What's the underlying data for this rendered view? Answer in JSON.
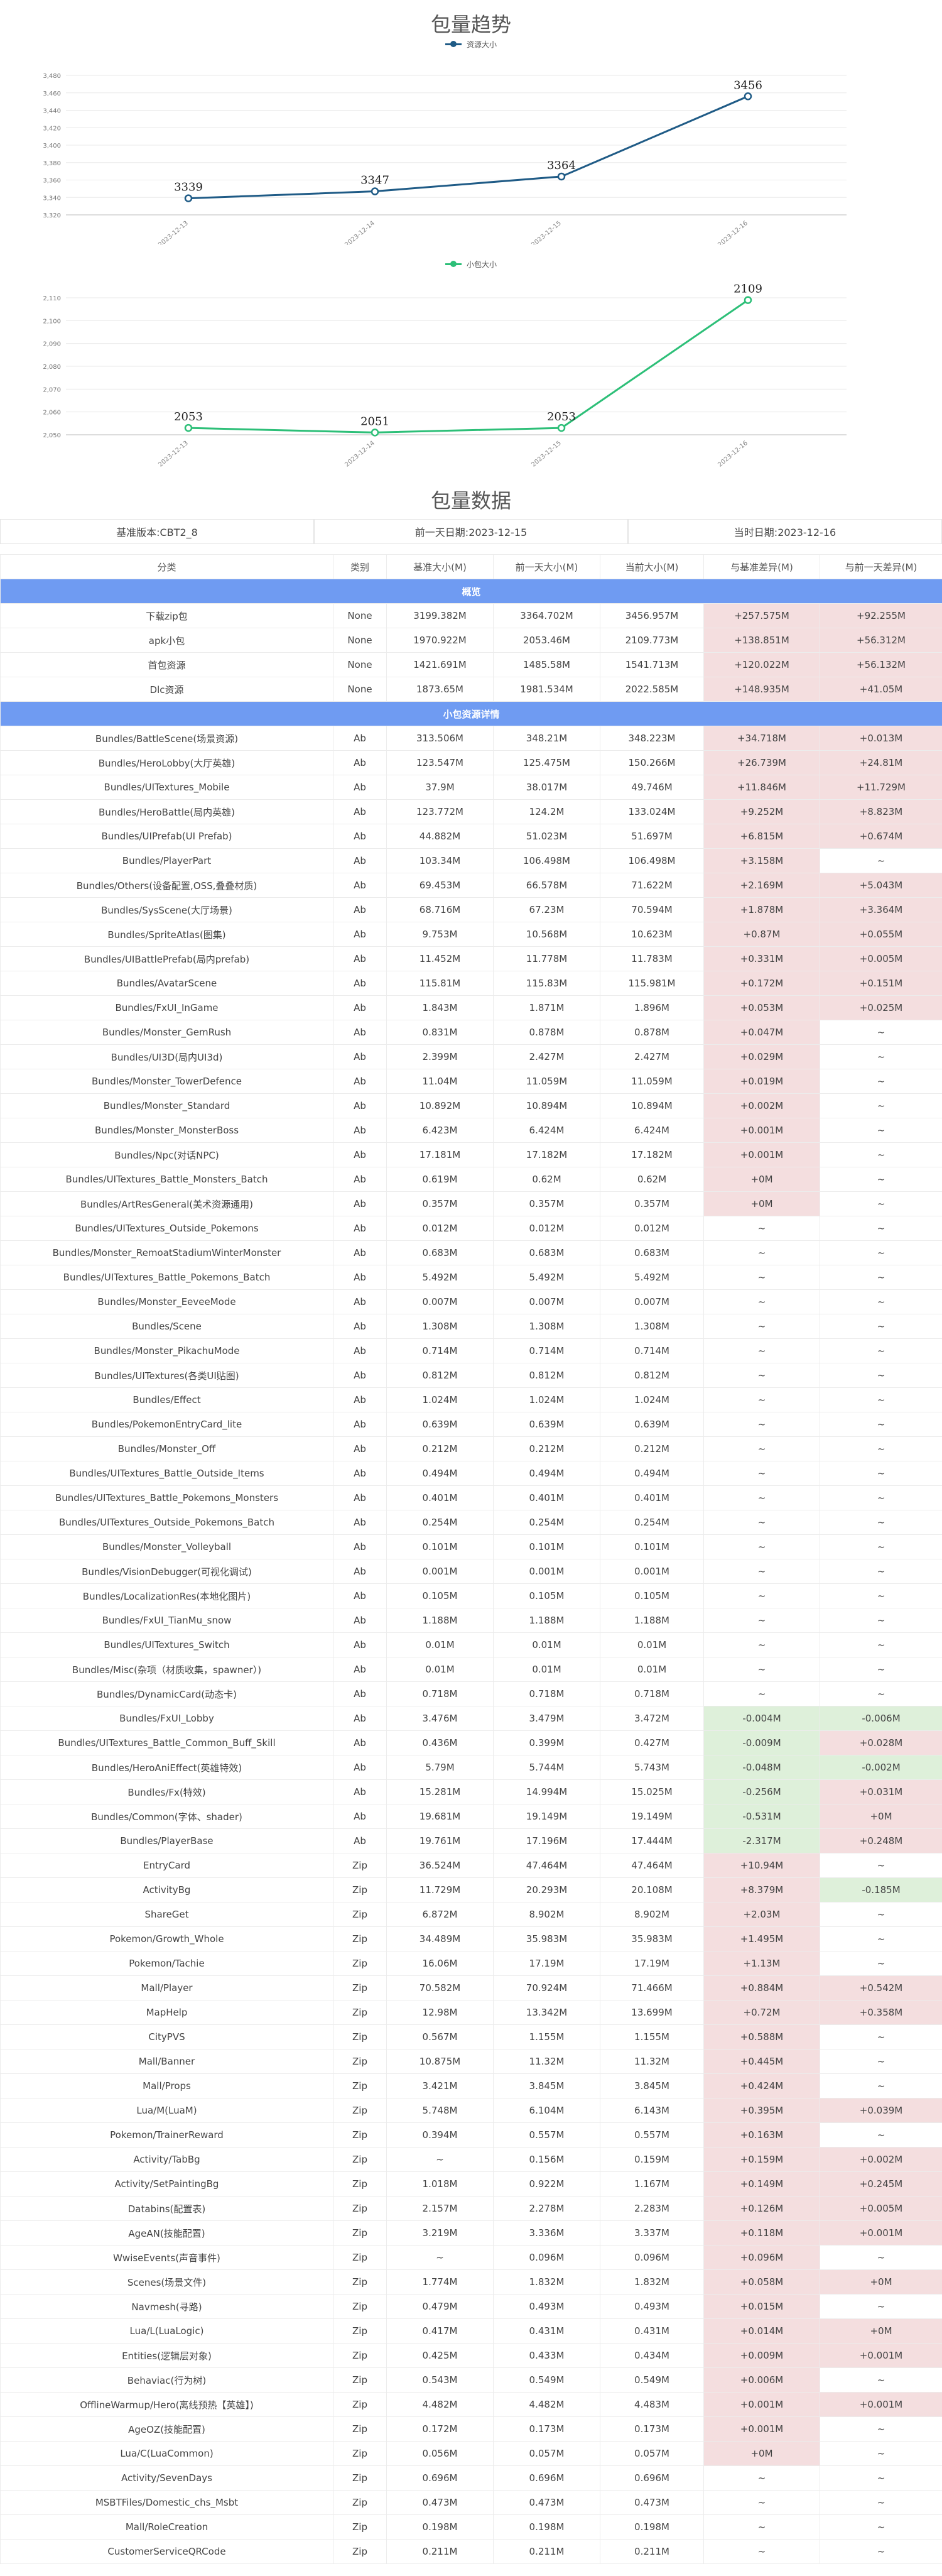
{
  "chart_data": [
    {
      "type": "line",
      "title": "包量趋势",
      "x": [
        "2023-12-13",
        "2023-12-14",
        "2023-12-15",
        "2023-12-16"
      ],
      "series": [
        {
          "name": "资源大小",
          "values": [
            3339,
            3347,
            3364,
            3456
          ],
          "color": "#1f5b86"
        }
      ],
      "y_ticks": [
        3320,
        3340,
        3360,
        3380,
        3400,
        3420,
        3440,
        3460,
        3480
      ],
      "ylim": [
        3320,
        3480
      ],
      "grid": true,
      "legend": "top-center"
    },
    {
      "type": "line",
      "title": "",
      "x": [
        "2023-12-13",
        "2023-12-14",
        "2023-12-15",
        "2023-12-16"
      ],
      "series": [
        {
          "name": "小包大小",
          "values": [
            2053,
            2051,
            2053,
            2109
          ],
          "color": "#2dbf78"
        }
      ],
      "y_ticks": [
        2050,
        2060,
        2070,
        2080,
        2090,
        2100,
        2110
      ],
      "ylim": [
        2050,
        2110
      ],
      "grid": true,
      "legend": "top-center"
    }
  ],
  "table": {
    "title": "包量数据",
    "info": [
      "基准版本:CBT2_8",
      "前一天日期:2023-12-15",
      "当时日期:2023-12-16"
    ],
    "headers": [
      "分类",
      "类别",
      "基准大小(M)",
      "前一天大小(M)",
      "当前大小(M)",
      "与基准差异(M)",
      "与前一天差异(M)"
    ],
    "sections": [
      {
        "title": "概览",
        "rows": [
          [
            "下载zip包",
            "None",
            "3199.382M",
            "3364.702M",
            "3456.957M",
            "+257.575M",
            "+92.255M"
          ],
          [
            "apk小包",
            "None",
            "1970.922M",
            "2053.46M",
            "2109.773M",
            "+138.851M",
            "+56.312M"
          ],
          [
            "首包资源",
            "None",
            "1421.691M",
            "1485.58M",
            "1541.713M",
            "+120.022M",
            "+56.132M"
          ],
          [
            "Dlc资源",
            "None",
            "1873.65M",
            "1981.534M",
            "2022.585M",
            "+148.935M",
            "+41.05M"
          ]
        ]
      },
      {
        "title": "小包资源详情",
        "rows": [
          [
            "Bundles/BattleScene(场景资源)",
            "Ab",
            "313.506M",
            "348.21M",
            "348.223M",
            "+34.718M",
            "+0.013M"
          ],
          [
            "Bundles/HeroLobby(大厅英雄)",
            "Ab",
            "123.547M",
            "125.475M",
            "150.266M",
            "+26.739M",
            "+24.81M"
          ],
          [
            "Bundles/UITextures_Mobile",
            "Ab",
            "37.9M",
            "38.017M",
            "49.746M",
            "+11.846M",
            "+11.729M"
          ],
          [
            "Bundles/HeroBattle(局内英雄)",
            "Ab",
            "123.772M",
            "124.2M",
            "133.024M",
            "+9.252M",
            "+8.823M"
          ],
          [
            "Bundles/UIPrefab(UI Prefab)",
            "Ab",
            "44.882M",
            "51.023M",
            "51.697M",
            "+6.815M",
            "+0.674M"
          ],
          [
            "Bundles/PlayerPart",
            "Ab",
            "103.34M",
            "106.498M",
            "106.498M",
            "+3.158M",
            "~"
          ],
          [
            "Bundles/Others(设备配置,OSS,叠叠材质)",
            "Ab",
            "69.453M",
            "66.578M",
            "71.622M",
            "+2.169M",
            "+5.043M"
          ],
          [
            "Bundles/SysScene(大厅场景)",
            "Ab",
            "68.716M",
            "67.23M",
            "70.594M",
            "+1.878M",
            "+3.364M"
          ],
          [
            "Bundles/SpriteAtlas(图集)",
            "Ab",
            "9.753M",
            "10.568M",
            "10.623M",
            "+0.87M",
            "+0.055M"
          ],
          [
            "Bundles/UIBattlePrefab(局内prefab)",
            "Ab",
            "11.452M",
            "11.778M",
            "11.783M",
            "+0.331M",
            "+0.005M"
          ],
          [
            "Bundles/AvatarScene",
            "Ab",
            "115.81M",
            "115.83M",
            "115.981M",
            "+0.172M",
            "+0.151M"
          ],
          [
            "Bundles/FxUI_InGame",
            "Ab",
            "1.843M",
            "1.871M",
            "1.896M",
            "+0.053M",
            "+0.025M"
          ],
          [
            "Bundles/Monster_GemRush",
            "Ab",
            "0.831M",
            "0.878M",
            "0.878M",
            "+0.047M",
            "~"
          ],
          [
            "Bundles/UI3D(局内UI3d)",
            "Ab",
            "2.399M",
            "2.427M",
            "2.427M",
            "+0.029M",
            "~"
          ],
          [
            "Bundles/Monster_TowerDefence",
            "Ab",
            "11.04M",
            "11.059M",
            "11.059M",
            "+0.019M",
            "~"
          ],
          [
            "Bundles/Monster_Standard",
            "Ab",
            "10.892M",
            "10.894M",
            "10.894M",
            "+0.002M",
            "~"
          ],
          [
            "Bundles/Monster_MonsterBoss",
            "Ab",
            "6.423M",
            "6.424M",
            "6.424M",
            "+0.001M",
            "~"
          ],
          [
            "Bundles/Npc(对话NPC)",
            "Ab",
            "17.181M",
            "17.182M",
            "17.182M",
            "+0.001M",
            "~"
          ],
          [
            "Bundles/UITextures_Battle_Monsters_Batch",
            "Ab",
            "0.619M",
            "0.62M",
            "0.62M",
            "+0M",
            "~"
          ],
          [
            "Bundles/ArtResGeneral(美术资源通用)",
            "Ab",
            "0.357M",
            "0.357M",
            "0.357M",
            "+0M",
            "~"
          ],
          [
            "Bundles/UITextures_Outside_Pokemons",
            "Ab",
            "0.012M",
            "0.012M",
            "0.012M",
            "~",
            "~"
          ],
          [
            "Bundles/Monster_RemoatStadiumWinterMonster",
            "Ab",
            "0.683M",
            "0.683M",
            "0.683M",
            "~",
            "~"
          ],
          [
            "Bundles/UITextures_Battle_Pokemons_Batch",
            "Ab",
            "5.492M",
            "5.492M",
            "5.492M",
            "~",
            "~"
          ],
          [
            "Bundles/Monster_EeveeMode",
            "Ab",
            "0.007M",
            "0.007M",
            "0.007M",
            "~",
            "~"
          ],
          [
            "Bundles/Scene",
            "Ab",
            "1.308M",
            "1.308M",
            "1.308M",
            "~",
            "~"
          ],
          [
            "Bundles/Monster_PikachuMode",
            "Ab",
            "0.714M",
            "0.714M",
            "0.714M",
            "~",
            "~"
          ],
          [
            "Bundles/UITextures(各类UI贴图)",
            "Ab",
            "0.812M",
            "0.812M",
            "0.812M",
            "~",
            "~"
          ],
          [
            "Bundles/Effect",
            "Ab",
            "1.024M",
            "1.024M",
            "1.024M",
            "~",
            "~"
          ],
          [
            "Bundles/PokemonEntryCard_lite",
            "Ab",
            "0.639M",
            "0.639M",
            "0.639M",
            "~",
            "~"
          ],
          [
            "Bundles/Monster_Off",
            "Ab",
            "0.212M",
            "0.212M",
            "0.212M",
            "~",
            "~"
          ],
          [
            "Bundles/UITextures_Battle_Outside_Items",
            "Ab",
            "0.494M",
            "0.494M",
            "0.494M",
            "~",
            "~"
          ],
          [
            "Bundles/UITextures_Battle_Pokemons_Monsters",
            "Ab",
            "0.401M",
            "0.401M",
            "0.401M",
            "~",
            "~"
          ],
          [
            "Bundles/UITextures_Outside_Pokemons_Batch",
            "Ab",
            "0.254M",
            "0.254M",
            "0.254M",
            "~",
            "~"
          ],
          [
            "Bundles/Monster_Volleyball",
            "Ab",
            "0.101M",
            "0.101M",
            "0.101M",
            "~",
            "~"
          ],
          [
            "Bundles/VisionDebugger(可视化调试)",
            "Ab",
            "0.001M",
            "0.001M",
            "0.001M",
            "~",
            "~"
          ],
          [
            "Bundles/LocalizationRes(本地化图片)",
            "Ab",
            "0.105M",
            "0.105M",
            "0.105M",
            "~",
            "~"
          ],
          [
            "Bundles/FxUI_TianMu_snow",
            "Ab",
            "1.188M",
            "1.188M",
            "1.188M",
            "~",
            "~"
          ],
          [
            "Bundles/UITextures_Switch",
            "Ab",
            "0.01M",
            "0.01M",
            "0.01M",
            "~",
            "~"
          ],
          [
            "Bundles/Misc(杂项（材质收集，spawner）)",
            "Ab",
            "0.01M",
            "0.01M",
            "0.01M",
            "~",
            "~"
          ],
          [
            "Bundles/DynamicCard(动态卡)",
            "Ab",
            "0.718M",
            "0.718M",
            "0.718M",
            "~",
            "~"
          ],
          [
            "Bundles/FxUI_Lobby",
            "Ab",
            "3.476M",
            "3.479M",
            "3.472M",
            "-0.004M",
            "-0.006M"
          ],
          [
            "Bundles/UITextures_Battle_Common_Buff_Skill",
            "Ab",
            "0.436M",
            "0.399M",
            "0.427M",
            "-0.009M",
            "+0.028M"
          ],
          [
            "Bundles/HeroAniEffect(英雄特效)",
            "Ab",
            "5.79M",
            "5.744M",
            "5.743M",
            "-0.048M",
            "-0.002M"
          ],
          [
            "Bundles/Fx(特效)",
            "Ab",
            "15.281M",
            "14.994M",
            "15.025M",
            "-0.256M",
            "+0.031M"
          ],
          [
            "Bundles/Common(字体、shader)",
            "Ab",
            "19.681M",
            "19.149M",
            "19.149M",
            "-0.531M",
            "+0M"
          ],
          [
            "Bundles/PlayerBase",
            "Ab",
            "19.761M",
            "17.196M",
            "17.444M",
            "-2.317M",
            "+0.248M"
          ],
          [
            "EntryCard",
            "Zip",
            "36.524M",
            "47.464M",
            "47.464M",
            "+10.94M",
            "~"
          ],
          [
            "ActivityBg",
            "Zip",
            "11.729M",
            "20.293M",
            "20.108M",
            "+8.379M",
            "-0.185M"
          ],
          [
            "ShareGet",
            "Zip",
            "6.872M",
            "8.902M",
            "8.902M",
            "+2.03M",
            "~"
          ],
          [
            "Pokemon/Growth_Whole",
            "Zip",
            "34.489M",
            "35.983M",
            "35.983M",
            "+1.495M",
            "~"
          ],
          [
            "Pokemon/Tachie",
            "Zip",
            "16.06M",
            "17.19M",
            "17.19M",
            "+1.13M",
            "~"
          ],
          [
            "Mall/Player",
            "Zip",
            "70.582M",
            "70.924M",
            "71.466M",
            "+0.884M",
            "+0.542M"
          ],
          [
            "MapHelp",
            "Zip",
            "12.98M",
            "13.342M",
            "13.699M",
            "+0.72M",
            "+0.358M"
          ],
          [
            "CityPVS",
            "Zip",
            "0.567M",
            "1.155M",
            "1.155M",
            "+0.588M",
            "~"
          ],
          [
            "Mall/Banner",
            "Zip",
            "10.875M",
            "11.32M",
            "11.32M",
            "+0.445M",
            "~"
          ],
          [
            "Mall/Props",
            "Zip",
            "3.421M",
            "3.845M",
            "3.845M",
            "+0.424M",
            "~"
          ],
          [
            "Lua/M(LuaM)",
            "Zip",
            "5.748M",
            "6.104M",
            "6.143M",
            "+0.395M",
            "+0.039M"
          ],
          [
            "Pokemon/TrainerReward",
            "Zip",
            "0.394M",
            "0.557M",
            "0.557M",
            "+0.163M",
            "~"
          ],
          [
            "Activity/TabBg",
            "Zip",
            "~",
            "0.156M",
            "0.159M",
            "+0.159M",
            "+0.002M"
          ],
          [
            "Activity/SetPaintingBg",
            "Zip",
            "1.018M",
            "0.922M",
            "1.167M",
            "+0.149M",
            "+0.245M"
          ],
          [
            "Databins(配置表)",
            "Zip",
            "2.157M",
            "2.278M",
            "2.283M",
            "+0.126M",
            "+0.005M"
          ],
          [
            "AgeAN(技能配置)",
            "Zip",
            "3.219M",
            "3.336M",
            "3.337M",
            "+0.118M",
            "+0.001M"
          ],
          [
            "WwiseEvents(声音事件)",
            "Zip",
            "~",
            "0.096M",
            "0.096M",
            "+0.096M",
            "~"
          ],
          [
            "Scenes(场景文件)",
            "Zip",
            "1.774M",
            "1.832M",
            "1.832M",
            "+0.058M",
            "+0M"
          ],
          [
            "Navmesh(寻路)",
            "Zip",
            "0.479M",
            "0.493M",
            "0.493M",
            "+0.015M",
            "~"
          ],
          [
            "Lua/L(LuaLogic)",
            "Zip",
            "0.417M",
            "0.431M",
            "0.431M",
            "+0.014M",
            "+0M"
          ],
          [
            "Entities(逻辑层对象)",
            "Zip",
            "0.425M",
            "0.433M",
            "0.434M",
            "+0.009M",
            "+0.001M"
          ],
          [
            "Behaviac(行为树)",
            "Zip",
            "0.543M",
            "0.549M",
            "0.549M",
            "+0.006M",
            "~"
          ],
          [
            "OfflineWarmup/Hero(离线预热【英雄】)",
            "Zip",
            "4.482M",
            "4.482M",
            "4.483M",
            "+0.001M",
            "+0.001M"
          ],
          [
            "AgeOZ(技能配置)",
            "Zip",
            "0.172M",
            "0.173M",
            "0.173M",
            "+0.001M",
            "~"
          ],
          [
            "Lua/C(LuaCommon)",
            "Zip",
            "0.056M",
            "0.057M",
            "0.057M",
            "+0M",
            "~"
          ],
          [
            "Activity/SevenDays",
            "Zip",
            "0.696M",
            "0.696M",
            "0.696M",
            "~",
            "~"
          ],
          [
            "MSBTFiles/Domestic_chs_Msbt",
            "Zip",
            "0.473M",
            "0.473M",
            "0.473M",
            "~",
            "~"
          ],
          [
            "Mall/RoleCreation",
            "Zip",
            "0.198M",
            "0.198M",
            "0.198M",
            "~",
            "~"
          ],
          [
            "CustomerServiceQRCode",
            "Zip",
            "0.211M",
            "0.211M",
            "0.211M",
            "~",
            "~"
          ]
        ]
      }
    ]
  }
}
